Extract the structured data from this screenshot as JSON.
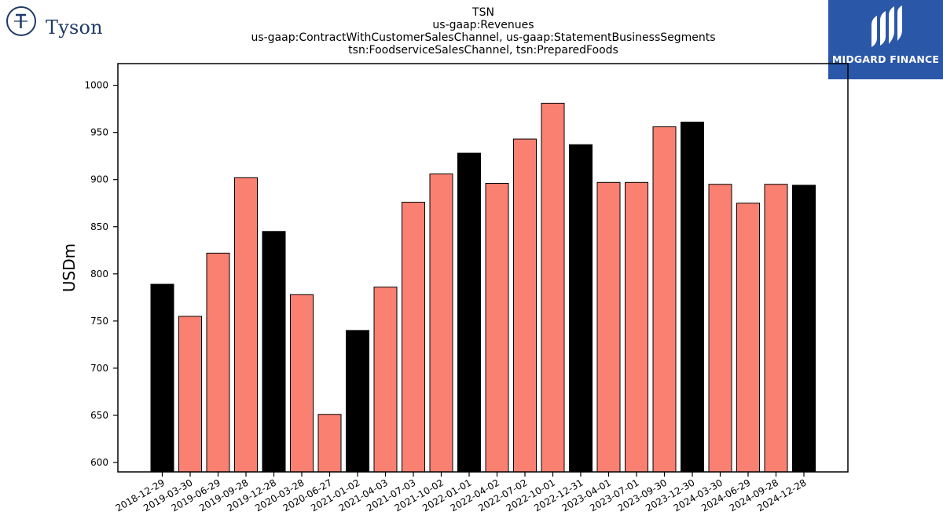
{
  "logos": {
    "company": "Tyson",
    "brand": "MIDGARD FINANCE"
  },
  "colors": {
    "bar_default": "#fa8072",
    "bar_highlight": "#000000",
    "tyson_navy": "#1f3a68",
    "midgard_blue": "#2b57a8"
  },
  "chart_data": {
    "type": "bar",
    "title_lines": [
      "TSN",
      "us-gaap:Revenues",
      "us-gaap:ContractWithCustomerSalesChannel, us-gaap:StatementBusinessSegments",
      "tsn:FoodserviceSalesChannel, tsn:PreparedFoods"
    ],
    "xlabel": "",
    "ylabel": "USDm",
    "ylim": [
      590,
      1023
    ],
    "yticks": [
      600,
      650,
      700,
      750,
      800,
      850,
      900,
      950,
      1000
    ],
    "grid": false,
    "categories": [
      "2018-12-29",
      "2019-03-30",
      "2019-06-29",
      "2019-09-28",
      "2019-12-28",
      "2020-03-28",
      "2020-06-27",
      "2021-01-02",
      "2021-04-03",
      "2021-07-03",
      "2021-10-02",
      "2022-01-01",
      "2022-04-02",
      "2022-07-02",
      "2022-10-01",
      "2022-12-31",
      "2023-04-01",
      "2023-07-01",
      "2023-09-30",
      "2023-12-30",
      "2024-03-30",
      "2024-06-29",
      "2024-09-28",
      "2024-12-28"
    ],
    "values": [
      789,
      755,
      822,
      902,
      845,
      778,
      651,
      740,
      786,
      876,
      906,
      928,
      896,
      943,
      981,
      937,
      897,
      897,
      956,
      961,
      895,
      875,
      895,
      894
    ],
    "highlight": [
      true,
      false,
      false,
      false,
      true,
      false,
      false,
      true,
      false,
      false,
      false,
      true,
      false,
      false,
      false,
      true,
      false,
      false,
      false,
      true,
      false,
      false,
      false,
      true
    ]
  }
}
